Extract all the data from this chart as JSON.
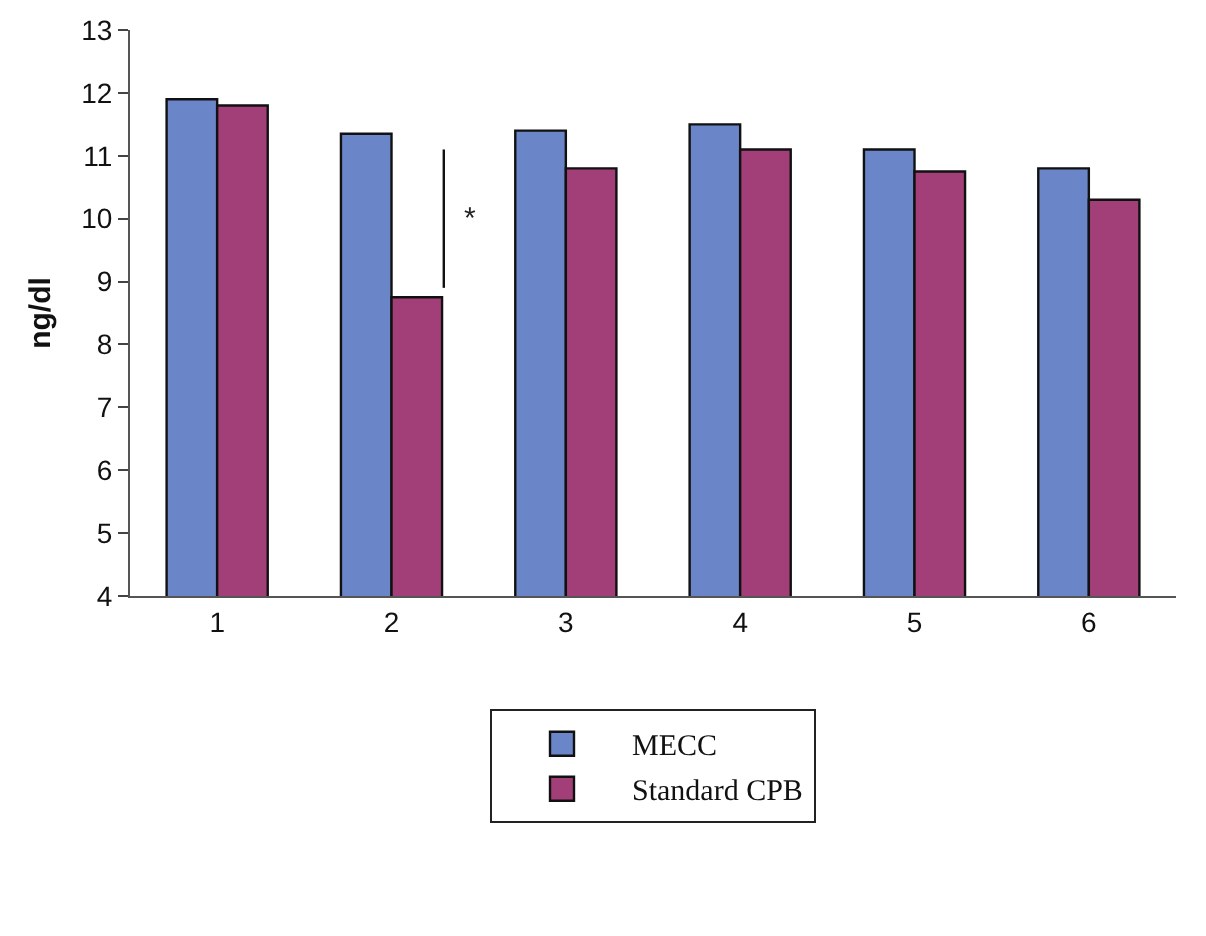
{
  "chart_data": {
    "type": "bar",
    "ylabel": "ng/dl",
    "categories": [
      "1",
      "2",
      "3",
      "4",
      "5",
      "6"
    ],
    "series": [
      {
        "name": "MECC",
        "color": "#6a85c8",
        "values": [
          11.9,
          11.35,
          11.4,
          11.5,
          11.1,
          10.8
        ]
      },
      {
        "name": "Standard CPB",
        "color": "#a33f78",
        "values": [
          11.8,
          8.75,
          10.8,
          11.1,
          10.75,
          10.3
        ]
      }
    ],
    "ylim": [
      4,
      13
    ],
    "yticks": [
      4,
      5,
      6,
      7,
      8,
      9,
      10,
      11,
      12,
      13
    ],
    "annotations": [
      {
        "text": "*",
        "x": "2",
        "y": 10
      }
    ],
    "grid": false,
    "legend": "bottom"
  }
}
